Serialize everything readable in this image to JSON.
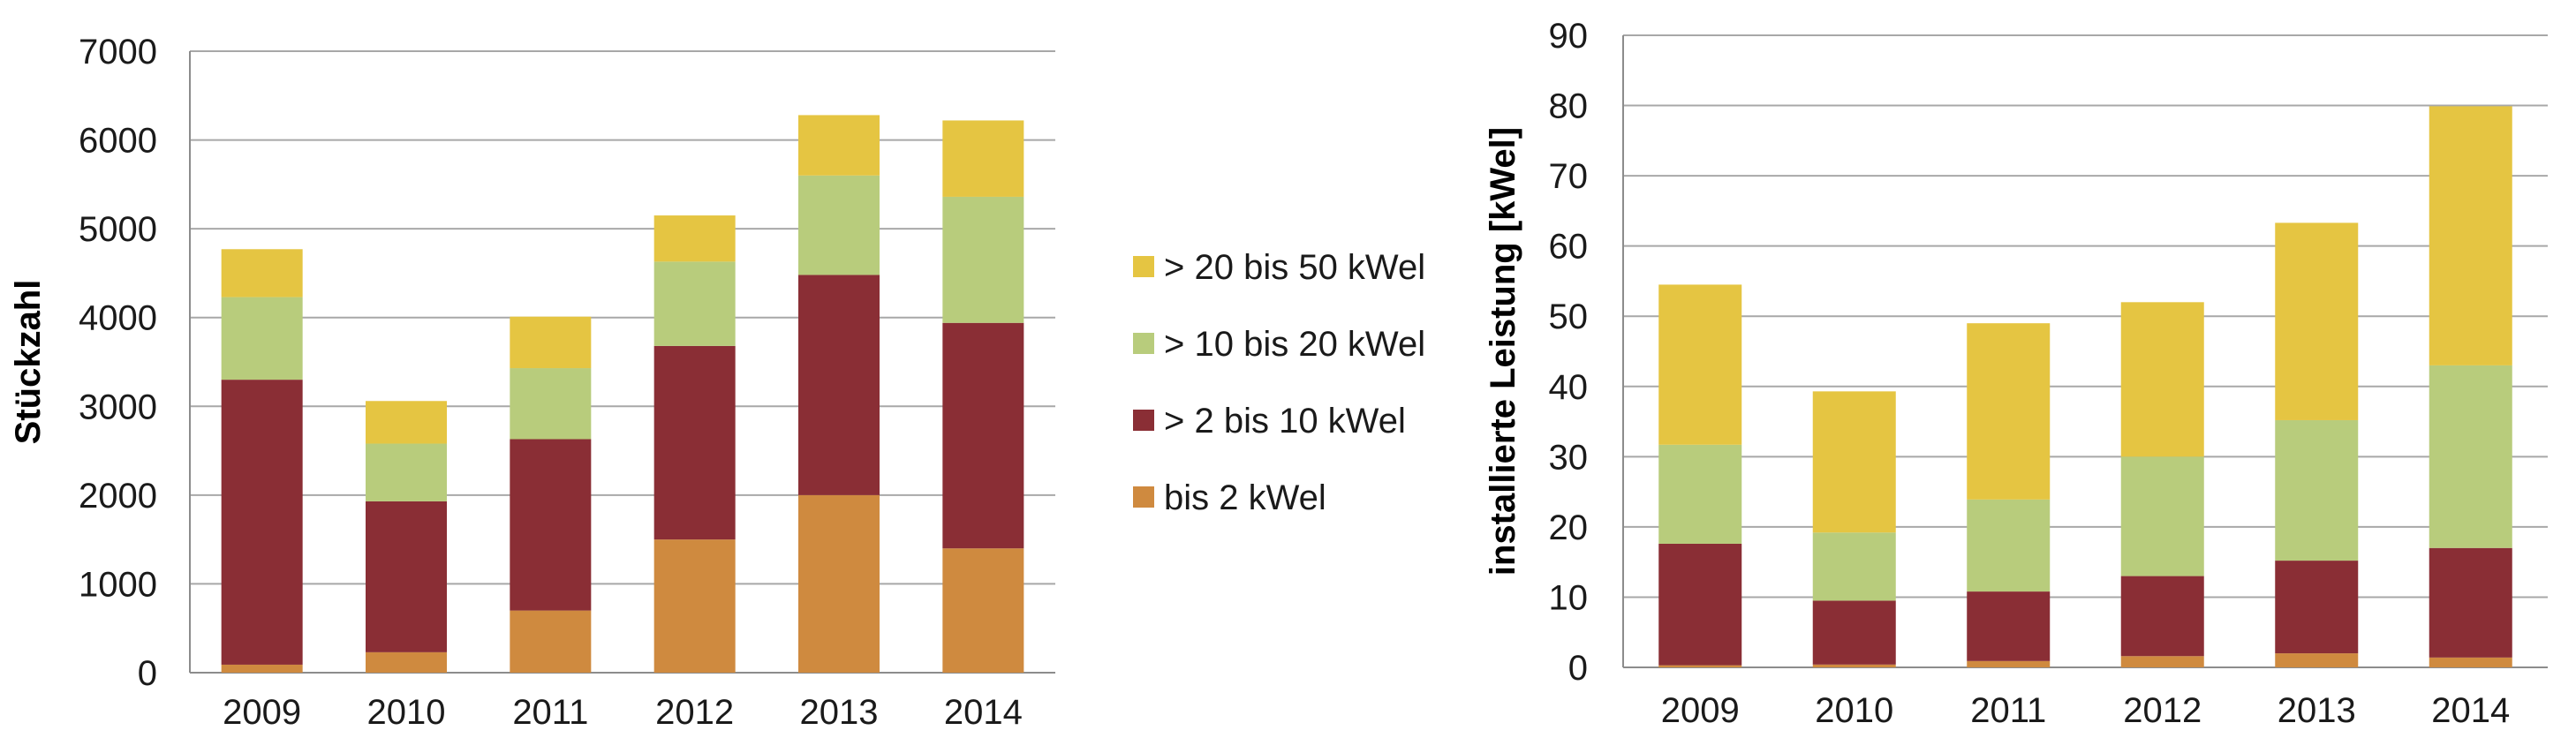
{
  "colors": {
    "bis_2": "#cf8a3f",
    "gt2_10": "#8a2e35",
    "gt10_20": "#b8cc7c",
    "gt20_50": "#e5c542",
    "grid": "#a8a8a8",
    "axis": "#8c8c8c"
  },
  "legend": [
    {
      "label": "> 20 bis 50 kWel",
      "color": "#e5c542"
    },
    {
      "label": "> 10 bis 20 kWel",
      "color": "#b8cc7c"
    },
    {
      "label": "> 2 bis 10 kWel",
      "color": "#8a2e35"
    },
    {
      "label": "bis 2 kWel",
      "color": "#cf8a3f"
    }
  ],
  "chart_data": [
    {
      "type": "bar",
      "stacked": true,
      "categories": [
        "2009",
        "2010",
        "2011",
        "2012",
        "2013",
        "2014"
      ],
      "ylabel": "Stückzahl",
      "ylim": [
        0,
        7000
      ],
      "yticks": [
        "0",
        "1000",
        "2000",
        "3000",
        "4000",
        "5000",
        "6000",
        "7000"
      ],
      "grid": true,
      "series": [
        {
          "name": "bis 2 kWel",
          "values": [
            90,
            230,
            700,
            1500,
            2000,
            1400
          ]
        },
        {
          "name": "> 2 bis 10 kWel",
          "values": [
            3210,
            1700,
            1930,
            2180,
            2480,
            2540
          ]
        },
        {
          "name": "> 10 bis 20 kWel",
          "values": [
            930,
            650,
            800,
            950,
            1120,
            1420
          ]
        },
        {
          "name": "> 20 bis 50 kWel",
          "values": [
            540,
            480,
            580,
            520,
            680,
            860
          ]
        }
      ]
    },
    {
      "type": "bar",
      "stacked": true,
      "categories": [
        "2009",
        "2010",
        "2011",
        "2012",
        "2013",
        "2014"
      ],
      "ylabel": "installierte Leistung [kWel]",
      "ylim": [
        0,
        90
      ],
      "yticks": [
        "0",
        "10",
        "20",
        "30",
        "40",
        "50",
        "60",
        "70",
        "80",
        "90"
      ],
      "grid": true,
      "series": [
        {
          "name": "bis 2 kWel",
          "values": [
            0.3,
            0.4,
            0.9,
            1.6,
            2.0,
            1.4
          ]
        },
        {
          "name": "> 2 bis 10 kWel",
          "values": [
            17.3,
            9.1,
            9.9,
            11.4,
            13.2,
            15.6
          ]
        },
        {
          "name": "> 10 bis 20 kWel",
          "values": [
            14.1,
            9.7,
            13.1,
            17.0,
            20.0,
            26.0
          ]
        },
        {
          "name": "> 20 bis 50 kWel",
          "values": [
            22.8,
            20.1,
            25.1,
            22.0,
            28.1,
            36.9
          ]
        }
      ]
    }
  ]
}
